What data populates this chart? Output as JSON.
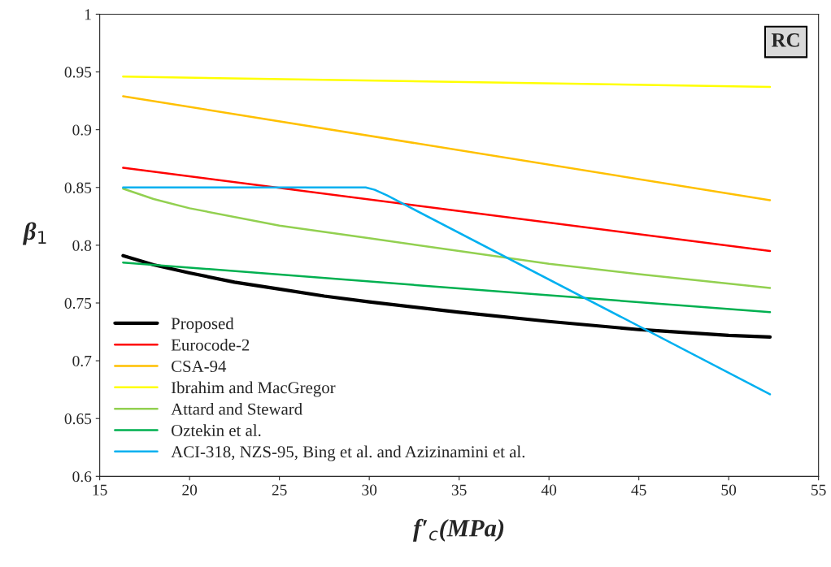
{
  "chart_data": {
    "type": "line",
    "xlabel": "f′$_{c}$(MPa)",
    "ylabel": "β$_{1}$",
    "xlim": [
      15,
      55
    ],
    "xticks": [
      15,
      20,
      25,
      30,
      35,
      40,
      45,
      50,
      55
    ],
    "ylim": [
      0.6,
      1
    ],
    "yticks": [
      0.6,
      0.65,
      0.7,
      0.75,
      0.8,
      0.85,
      0.9,
      0.95,
      1
    ],
    "grid": false,
    "legend": "bottom left",
    "marker": "none",
    "line_style": "solid",
    "annotations": [
      "RC"
    ],
    "series": [
      {
        "name": "Proposed",
        "color": "#000000",
        "x": [
          16.3,
          18,
          20,
          22.5,
          25,
          27.5,
          30,
          35,
          40,
          45,
          50,
          52.3
        ],
        "values": [
          0.791,
          0.783,
          0.776,
          0.768,
          0.762,
          0.756,
          0.751,
          0.742,
          0.734,
          0.727,
          0.722,
          0.7205
        ]
      },
      {
        "name": "Eurocode-2",
        "color": "#ff0000",
        "x": [
          16.3,
          52.3
        ],
        "values": [
          0.867,
          0.795
        ]
      },
      {
        "name": "CSA-94",
        "color": "#ffc000",
        "x": [
          16.3,
          52.3
        ],
        "values": [
          0.929,
          0.839
        ]
      },
      {
        "name": "Ibrahim and MacGregor",
        "color": "#ffff00",
        "x": [
          16.3,
          52.3
        ],
        "values": [
          0.946,
          0.937
        ]
      },
      {
        "name": "Attard and Steward",
        "color": "#92d050",
        "x": [
          16.3,
          18,
          20,
          25,
          30,
          35,
          40,
          45,
          52.3
        ],
        "values": [
          0.849,
          0.84,
          0.832,
          0.817,
          0.806,
          0.795,
          0.784,
          0.775,
          0.763
        ]
      },
      {
        "name": "Oztekin et al.",
        "color": "#00b050",
        "x": [
          16.3,
          52.3
        ],
        "values": [
          0.785,
          0.742
        ]
      },
      {
        "name": "ACI-318, NZS-95, Bing et al. and Azizinamini et al.",
        "color": "#00b0f0",
        "x": [
          16.3,
          29.3,
          29.8,
          30.3,
          31,
          52.3
        ],
        "values": [
          0.85,
          0.85,
          0.85,
          0.848,
          0.843,
          0.671
        ]
      }
    ]
  }
}
